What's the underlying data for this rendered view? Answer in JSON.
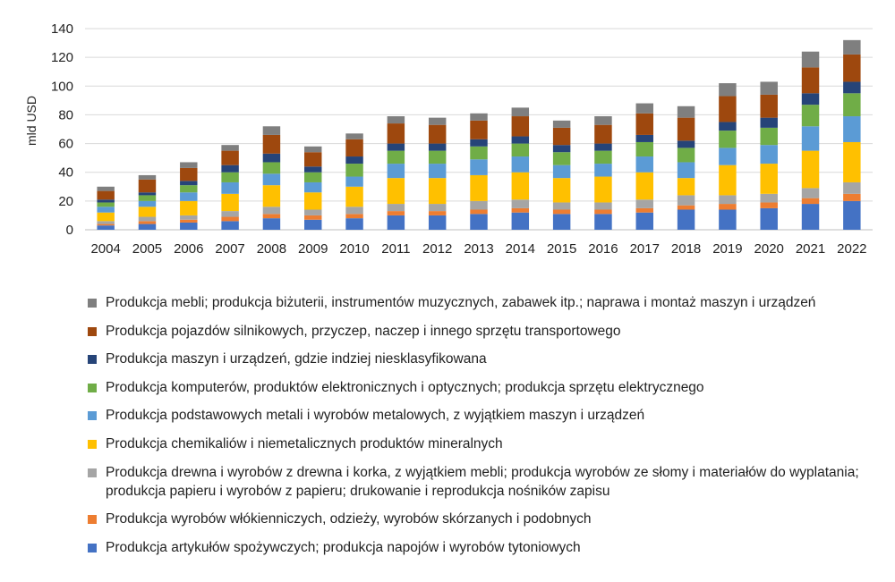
{
  "chart_data": {
    "type": "bar",
    "stacked": true,
    "ylabel": "mld USD",
    "ylim": [
      0,
      140
    ],
    "yticks": [
      0,
      20,
      40,
      60,
      80,
      100,
      120,
      140
    ],
    "grid": true,
    "legend_position": "bottom",
    "categories": [
      "2004",
      "2005",
      "2006",
      "2007",
      "2008",
      "2009",
      "2010",
      "2011",
      "2012",
      "2013",
      "2014",
      "2015",
      "2016",
      "2017",
      "2018",
      "2019",
      "2020",
      "2021",
      "2022"
    ],
    "series": [
      {
        "name": "Produkcja artykułów spożywczych; produkcja napojów i wyrobów tytoniowych",
        "color": "#4472c4",
        "values": [
          3,
          4,
          5,
          6,
          8,
          7,
          8,
          10,
          10,
          11,
          12,
          11,
          11,
          12,
          14,
          14,
          15,
          18,
          20
        ]
      },
      {
        "name": "Produkcja wyrobów włókienniczych, odzieży, wyrobów skórzanych i podobnych",
        "color": "#ed7d31",
        "values": [
          1,
          2,
          2,
          3,
          3,
          3,
          3,
          3,
          3,
          3,
          3,
          3,
          3,
          3,
          3,
          4,
          4,
          4,
          5
        ]
      },
      {
        "name": "Produkcja drewna i wyrobów z drewna i korka, z wyjątkiem mebli; produkcja wyrobów ze słomy i materiałów do wyplatania; produkcja papieru i wyrobów z papieru; drukowanie i reprodukcja nośników zapisu",
        "color": "#a5a5a5",
        "values": [
          2,
          3,
          3,
          4,
          5,
          4,
          5,
          5,
          5,
          6,
          6,
          5,
          5,
          6,
          7,
          6,
          6,
          7,
          8
        ]
      },
      {
        "name": "Produkcja chemikaliów i niemetalicznych produktów mineralnych",
        "color": "#ffc000",
        "values": [
          6,
          7,
          10,
          12,
          15,
          12,
          14,
          18,
          18,
          18,
          19,
          17,
          18,
          19,
          12,
          21,
          21,
          26,
          28
        ]
      },
      {
        "name": "Produkcja podstawowych metali i wyrobów metalowych, z wyjątkiem maszyn i urządzeń",
        "color": "#5b9bd5",
        "values": [
          4,
          4,
          6,
          8,
          8,
          7,
          7,
          10,
          10,
          11,
          11,
          9,
          9,
          11,
          11,
          12,
          13,
          17,
          18
        ]
      },
      {
        "name": "Produkcja komputerów, produktów elektronicznych i optycznych; produkcja sprzętu elektrycznego",
        "color": "#70ad47",
        "values": [
          3,
          4,
          5,
          7,
          8,
          7,
          9,
          9,
          9,
          9,
          9,
          9,
          9,
          10,
          10,
          12,
          12,
          15,
          16
        ]
      },
      {
        "name": "Produkcja maszyn i urządzeń, gdzie indziej niesklasyfikowana",
        "color": "#264478",
        "values": [
          2,
          2,
          3,
          5,
          6,
          4,
          5,
          5,
          5,
          5,
          5,
          5,
          5,
          5,
          5,
          6,
          7,
          8,
          8
        ]
      },
      {
        "name": "Produkcja pojazdów silnikowych, przyczep, naczep i innego sprzętu transportowego",
        "color": "#9e480e",
        "values": [
          6,
          9,
          9,
          10,
          13,
          10,
          12,
          14,
          13,
          13,
          14,
          12,
          13,
          15,
          16,
          18,
          16,
          18,
          19
        ]
      },
      {
        "name": "Produkcja mebli; produkcja biżuterii, instrumentów muzycznych, zabawek itp.; naprawa i montaż maszyn i urządzeń",
        "color": "#7f7f7f",
        "values": [
          3,
          3,
          4,
          4,
          6,
          4,
          4,
          5,
          5,
          5,
          6,
          5,
          6,
          7,
          8,
          9,
          9,
          11,
          10
        ]
      }
    ]
  }
}
